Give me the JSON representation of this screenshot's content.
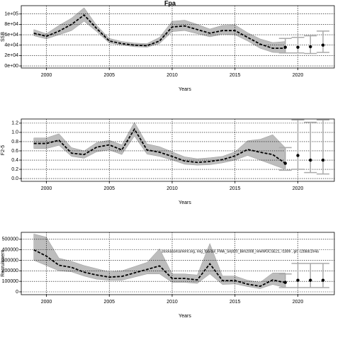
{
  "title": "Fpa",
  "chart_data": [
    {
      "type": "line",
      "ylabel": "SSB",
      "xlabel": "Years",
      "x": [
        1999,
        2000,
        2001,
        2002,
        2003,
        2004,
        2005,
        2006,
        2007,
        2008,
        2009,
        2010,
        2011,
        2012,
        2013,
        2014,
        2015,
        2016,
        2017,
        2018,
        2019
      ],
      "values": [
        63000,
        57000,
        67000,
        80000,
        98000,
        72000,
        48000,
        43000,
        40000,
        39000,
        48000,
        75000,
        77000,
        70000,
        63000,
        68000,
        68000,
        55000,
        42000,
        34000,
        34000
      ],
      "lower": [
        58000,
        52000,
        60000,
        68000,
        86000,
        66000,
        44000,
        40000,
        37000,
        36000,
        43000,
        66000,
        68000,
        62000,
        56000,
        61000,
        60000,
        48000,
        34000,
        26000,
        25000
      ],
      "upper": [
        70000,
        62000,
        78000,
        92000,
        112000,
        78000,
        53000,
        47000,
        44000,
        43000,
        55000,
        86000,
        88000,
        80000,
        71000,
        78000,
        79000,
        64000,
        52000,
        45000,
        47000
      ],
      "proj_x": [
        2019,
        2020,
        2021,
        2022
      ],
      "proj_values": [
        36000,
        36000,
        37000,
        40000
      ],
      "proj_lower": [
        25000,
        25000,
        24000,
        26000
      ],
      "proj_upper": [
        53000,
        55000,
        58000,
        67000
      ],
      "xlim": [
        1998,
        2022.9
      ],
      "xticks": [
        2000,
        2005,
        2010,
        2015,
        2020
      ],
      "ylim": [
        -4000,
        116000
      ],
      "yticks": [
        {
          "value": 0,
          "label": "0e+00"
        },
        {
          "value": 20000,
          "label": "2e+04"
        },
        {
          "value": 40000,
          "label": "4e+04"
        },
        {
          "value": 60000,
          "label": "6e+04"
        },
        {
          "value": 80000,
          "label": "8e+04"
        },
        {
          "value": 100000,
          "label": "1e+05"
        }
      ],
      "grid": true,
      "color": "#000000",
      "band_color": "#bdbdbd",
      "proj_color": "#aaaaaa"
    },
    {
      "type": "line",
      "ylabel": "F2-5",
      "xlabel": "Years",
      "x": [
        1999,
        2000,
        2001,
        2002,
        2003,
        2004,
        2005,
        2006,
        2007,
        2008,
        2009,
        2010,
        2011,
        2012,
        2013,
        2014,
        2015,
        2016,
        2017,
        2018,
        2019
      ],
      "values": [
        0.76,
        0.76,
        0.83,
        0.55,
        0.52,
        0.68,
        0.73,
        0.62,
        1.07,
        0.62,
        0.57,
        0.48,
        0.38,
        0.35,
        0.37,
        0.41,
        0.49,
        0.63,
        0.57,
        0.52,
        0.33
      ],
      "lower": [
        0.65,
        0.65,
        0.72,
        0.48,
        0.44,
        0.58,
        0.62,
        0.52,
        0.92,
        0.53,
        0.48,
        0.4,
        0.31,
        0.29,
        0.3,
        0.34,
        0.4,
        0.5,
        0.4,
        0.3,
        0.2
      ],
      "upper": [
        0.88,
        0.88,
        0.97,
        0.67,
        0.6,
        0.78,
        0.83,
        0.73,
        1.22,
        0.75,
        0.69,
        0.58,
        0.47,
        0.43,
        0.45,
        0.48,
        0.58,
        0.82,
        0.85,
        0.95,
        0.67
      ],
      "proj_x": [
        2019,
        2020,
        2021,
        2022
      ],
      "proj_values": [
        0.33,
        0.5,
        0.4,
        0.4
      ],
      "proj_lower": [
        0.18,
        0.2,
        0.13,
        0.1
      ],
      "proj_upper": [
        0.67,
        1.27,
        1.22,
        1.27
      ],
      "xlim": [
        1998,
        2022.9
      ],
      "xticks": [
        2000,
        2005,
        2010,
        2015,
        2020
      ],
      "ylim": [
        -0.06,
        1.29
      ],
      "yticks": [
        {
          "value": 0,
          "label": "0.0"
        },
        0.2,
        0.4,
        0.6,
        0.8,
        {
          "value": 1,
          "label": "1.0"
        },
        1.2
      ],
      "grid": true,
      "color": "#000000",
      "band_color": "#bdbdbd",
      "proj_color": "#aaaaaa"
    },
    {
      "type": "line",
      "ylabel": "Recruitment",
      "xlabel": "Years",
      "annotation": "stockassessment.org, ring_fpa-tail_FMA_Sept20_Bim2008_newWGCSE21, r1809 , git: c2bbdc2e4a",
      "x": [
        1999,
        2000,
        2001,
        2002,
        2003,
        2004,
        2005,
        2006,
        2007,
        2008,
        2009,
        2010,
        2011,
        2012,
        2013,
        2014,
        2015,
        2016,
        2017,
        2018,
        2019
      ],
      "values": [
        400000,
        340000,
        253000,
        233000,
        187000,
        160000,
        140000,
        147000,
        180000,
        213000,
        247000,
        127000,
        127000,
        113000,
        267000,
        107000,
        107000,
        73000,
        53000,
        113000,
        87000
      ],
      "lower": [
        300000,
        250000,
        200000,
        190000,
        150000,
        120000,
        110000,
        110000,
        140000,
        170000,
        170000,
        90000,
        90000,
        80000,
        170000,
        70000,
        75000,
        50000,
        30000,
        70000,
        40000
      ],
      "upper": [
        550000,
        520000,
        320000,
        290000,
        250000,
        220000,
        190000,
        200000,
        240000,
        280000,
        410000,
        170000,
        170000,
        160000,
        460000,
        150000,
        150000,
        110000,
        90000,
        180000,
        180000
      ],
      "proj_x": [
        2019,
        2020,
        2021,
        2022
      ],
      "proj_values": [
        90000,
        110000,
        110000,
        110000
      ],
      "proj_lower": [
        40000,
        40000,
        40000,
        40000
      ],
      "proj_upper": [
        170000,
        270000,
        270000,
        270000
      ],
      "xlim": [
        1998,
        2022.9
      ],
      "xticks": [
        2000,
        2005,
        2010,
        2015,
        2020
      ],
      "ylim": [
        -27000,
        566000
      ],
      "yticks": [
        0,
        100000,
        200000,
        300000,
        400000,
        500000
      ],
      "grid": true,
      "color": "#000000",
      "band_color": "#bdbdbd",
      "proj_color": "#aaaaaa"
    }
  ]
}
